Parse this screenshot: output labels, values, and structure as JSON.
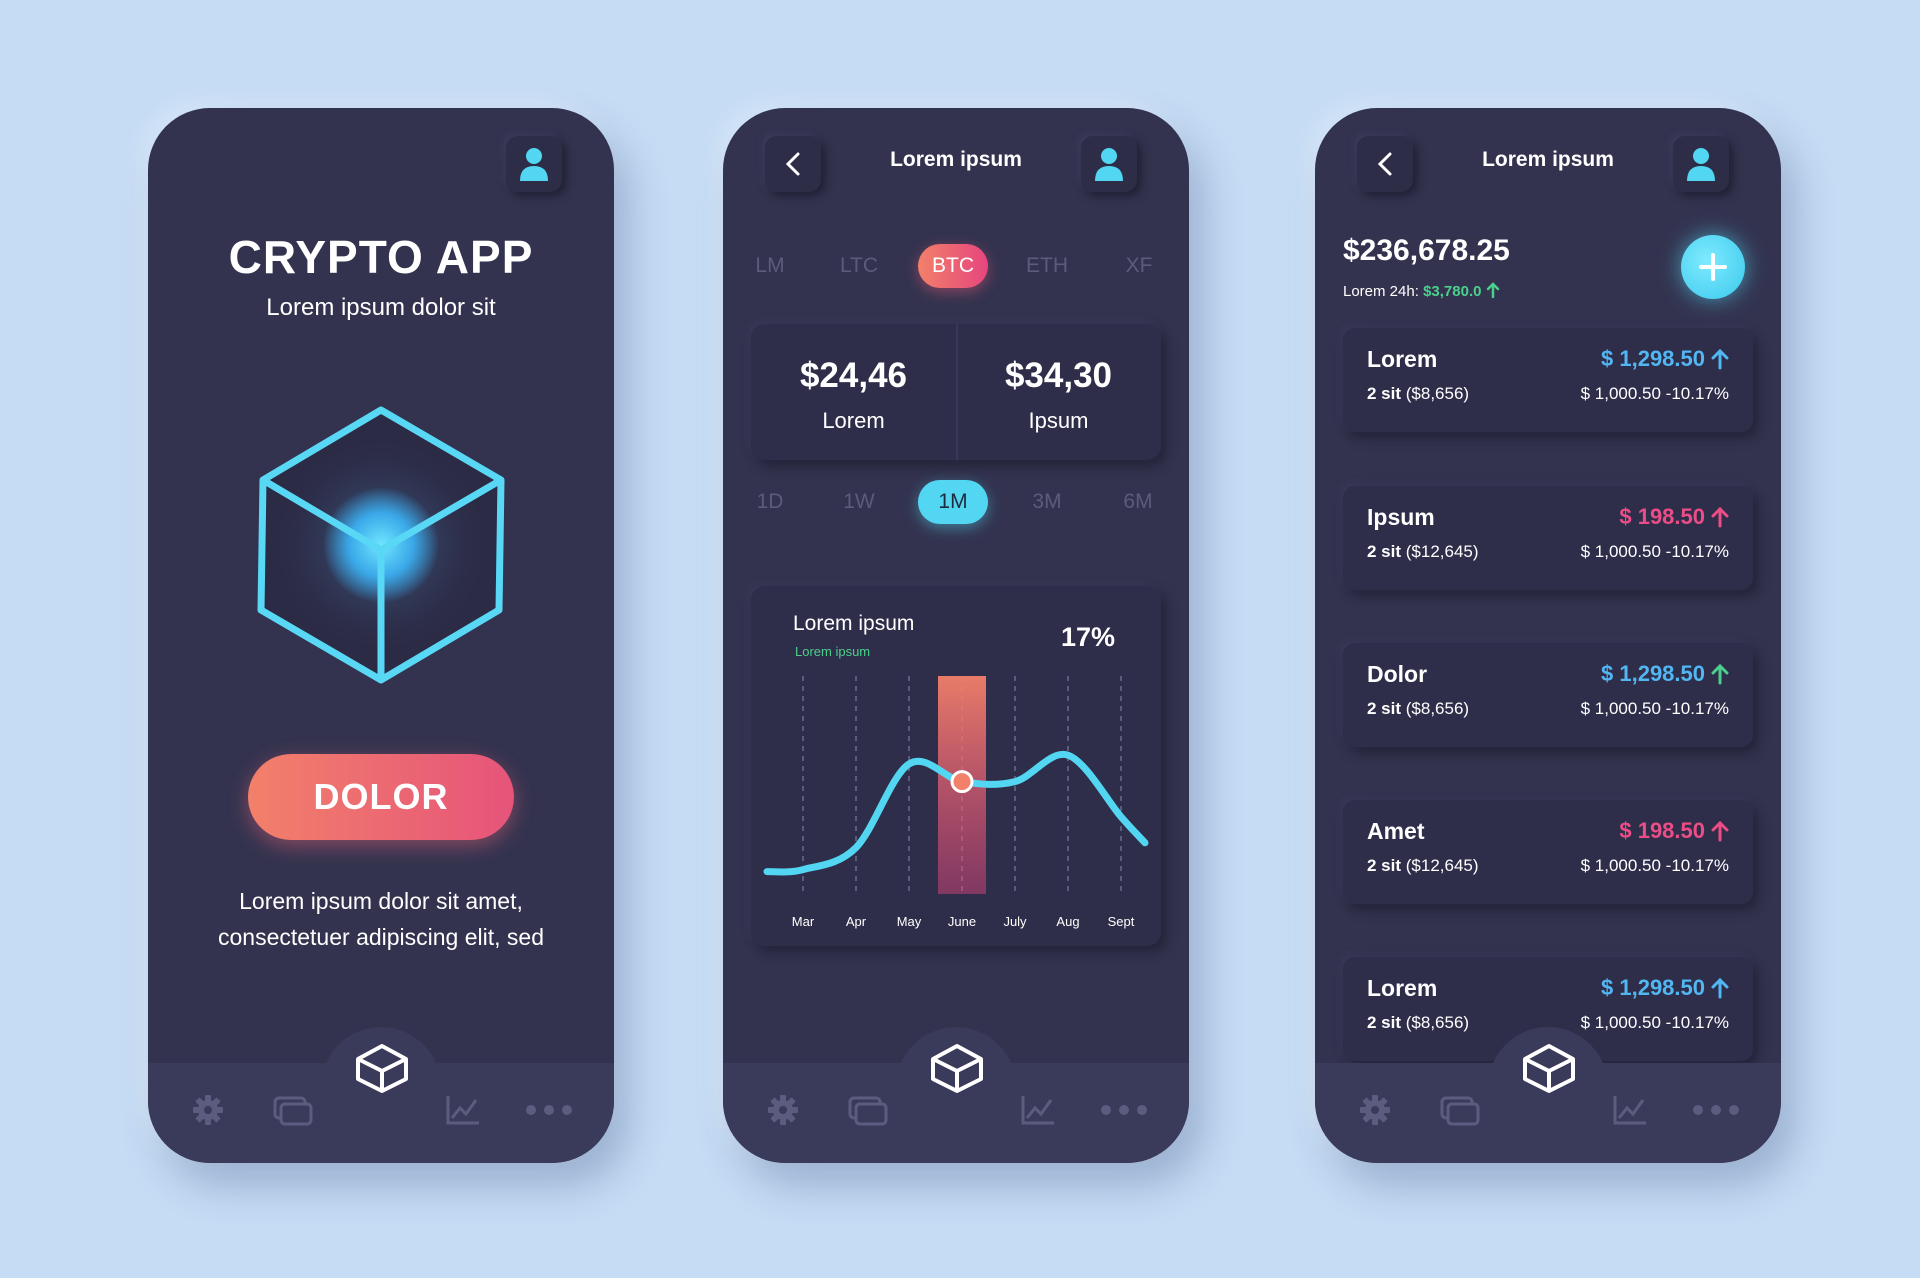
{
  "colors": {
    "background": "#c5dcf5",
    "phone": "#33334f",
    "accent_cyan": "#52d6f2",
    "accent_pink": "#e6547a",
    "accent_orange": "#f2806a",
    "up_green": "#4bd08c",
    "price_blue": "#52b6f2",
    "price_pink": "#ec4d86"
  },
  "screen1": {
    "title": "CRYPTO APP",
    "subtitle": "Lorem ipsum dolor sit",
    "button_label": "DOLOR",
    "description_line1": "Lorem ipsum dolor sit amet,",
    "description_line2": "consectetuer adipiscing elit, sed",
    "icons": [
      "user-icon",
      "cube-logo"
    ]
  },
  "screen2": {
    "header_title": "Lorem ipsum",
    "coin_tabs": [
      "LM",
      "LTC",
      "BTC",
      "ETH",
      "XF"
    ],
    "active_coin": "BTC",
    "prices": [
      {
        "value": "$24,46",
        "label": "Lorem"
      },
      {
        "value": "$34,30",
        "label": "Ipsum"
      }
    ],
    "range_tabs": [
      "1D",
      "1W",
      "1M",
      "3M",
      "6M"
    ],
    "active_range": "1M",
    "chart": {
      "title": "Lorem ipsum",
      "subtitle": "Lorem ipsum",
      "percent": "17%"
    }
  },
  "chart_data": {
    "type": "line",
    "title": "Lorem ipsum",
    "categories": [
      "Mar",
      "Apr",
      "May",
      "June",
      "July",
      "Aug",
      "Sept"
    ],
    "values": [
      0.12,
      0.22,
      0.6,
      0.52,
      0.52,
      0.64,
      0.36
    ],
    "highlighted_category": "June",
    "highlighted_value": 0.52,
    "ylim": [
      0,
      1
    ],
    "grid": "vertical dashed"
  },
  "screen3": {
    "header_title": "Lorem ipsum",
    "balance": "$236,678.25",
    "change_label": "Lorem 24h:",
    "change_value": "$3,780.0",
    "assets": [
      {
        "name": "Lorem",
        "qty_bold": "2 sit",
        "qty_rest": " ($8,656)",
        "price": "$ 1,298.50",
        "price_color": "#52b6f2",
        "arrow_color": "#52b6f2",
        "sub": "$ 1,000.50 -10.17%"
      },
      {
        "name": "Ipsum",
        "qty_bold": "2 sit",
        "qty_rest": " ($12,645)",
        "price": "$ 198.50",
        "price_color": "#ec4d86",
        "arrow_color": "#ec4d86",
        "sub": "$ 1,000.50 -10.17%"
      },
      {
        "name": "Dolor",
        "qty_bold": "2 sit",
        "qty_rest": " ($8,656)",
        "price": "$ 1,298.50",
        "price_color": "#52b6f2",
        "arrow_color": "#4bd08c",
        "sub": "$ 1,000.50 -10.17%"
      },
      {
        "name": "Amet",
        "qty_bold": "2 sit",
        "qty_rest": " ($12,645)",
        "price": "$ 198.50",
        "price_color": "#ec4d86",
        "arrow_color": "#ec4d86",
        "sub": "$ 1,000.50 -10.17%"
      },
      {
        "name": "Lorem",
        "qty_bold": "2 sit",
        "qty_rest": " ($8,656)",
        "price": "$ 1,298.50",
        "price_color": "#52b6f2",
        "arrow_color": "#52b6f2",
        "sub": "$ 1,000.50 -10.17%"
      }
    ]
  },
  "nav_icons": [
    "gear-icon",
    "cards-icon",
    "cube-icon",
    "chart-icon",
    "more-icon"
  ]
}
